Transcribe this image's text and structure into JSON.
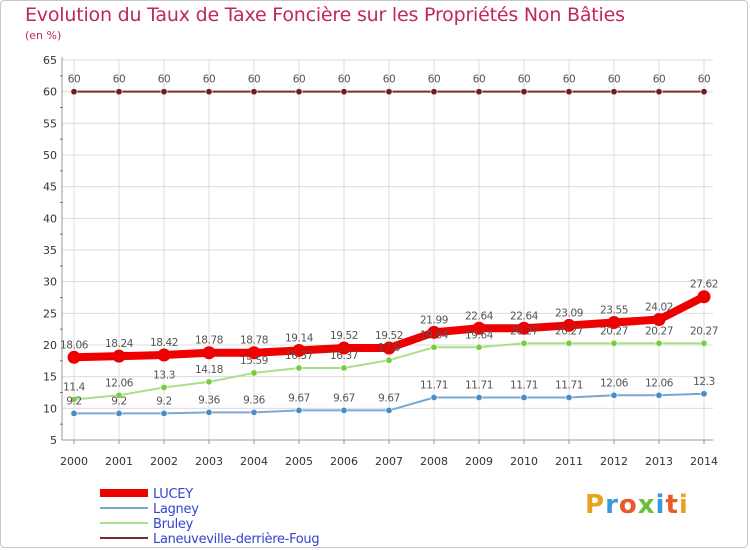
{
  "title": "Evolution du Taux de Taxe Foncière sur les Propriétés Non Bâties",
  "subtitle": "(en %)",
  "logo": {
    "text": "Proxiti",
    "colors": [
      "#e8a21f",
      "#3a9ad9",
      "#e85a2a",
      "#6bbf3a",
      "#3a9ad9",
      "#e85a2a",
      "#e8a21f"
    ]
  },
  "chart_data": {
    "type": "line",
    "x": [
      2000,
      2001,
      2002,
      2003,
      2004,
      2005,
      2006,
      2007,
      2008,
      2009,
      2010,
      2011,
      2012,
      2013,
      2014
    ],
    "ylim": [
      5,
      65
    ],
    "yticks": [
      5,
      10,
      15,
      20,
      25,
      30,
      35,
      40,
      45,
      50,
      55,
      60,
      65
    ],
    "grid": true,
    "legend": "bottom-left",
    "series": [
      {
        "name": "Laneuveville-derrière-Foug",
        "color": "#7a2a2a",
        "marker": "#6b1f1f",
        "width": 2,
        "values": [
          60,
          60,
          60,
          60,
          60,
          60,
          60,
          60,
          60,
          60,
          60,
          60,
          60,
          60,
          60
        ],
        "labels": [
          "60",
          "60",
          "60",
          "60",
          "60",
          "60",
          "60",
          "60",
          "60",
          "60",
          "60",
          "60",
          "60",
          "60",
          "60"
        ]
      },
      {
        "name": "Bruley",
        "color": "#a8e08a",
        "marker": "#7acc3e",
        "width": 2,
        "values": [
          11.4,
          12.06,
          13.3,
          14.18,
          15.59,
          16.37,
          16.37,
          17.6,
          19.64,
          19.64,
          20.27,
          20.27,
          20.27,
          20.27,
          20.27
        ],
        "labels": [
          "11.4",
          "12.06",
          "13.3",
          "14.18",
          "15.59",
          "16.37",
          "16.37",
          "17.6",
          "19.64",
          "19.64",
          "20.27",
          "20.27",
          "20.27",
          "20.27",
          "20.27"
        ]
      },
      {
        "name": "Lagney",
        "color": "#7aa8d0",
        "marker": "#4a8cc8",
        "width": 2,
        "values": [
          9.2,
          9.2,
          9.2,
          9.36,
          9.36,
          9.67,
          9.67,
          9.67,
          11.71,
          11.71,
          11.71,
          11.71,
          12.06,
          12.06,
          12.3
        ],
        "labels": [
          "9.2",
          "9.2",
          "9.2",
          "9.36",
          "9.36",
          "9.67",
          "9.67",
          "9.67",
          "11.71",
          "11.71",
          "11.71",
          "11.71",
          "12.06",
          "12.06",
          "12.3"
        ]
      },
      {
        "name": "LUCEY",
        "color": "#ee0000",
        "marker": "#ee0000",
        "width": 8,
        "values": [
          18.06,
          18.24,
          18.42,
          18.78,
          18.78,
          19.14,
          19.52,
          19.52,
          21.99,
          22.64,
          22.64,
          23.09,
          23.55,
          24.02,
          27.62
        ],
        "labels": [
          "18.06",
          "18.24",
          "18.42",
          "18.78",
          "18.78",
          "19.14",
          "19.52",
          "19.52",
          "21.99",
          "22.64",
          "22.64",
          "23.09",
          "23.55",
          "24.02",
          "27.62"
        ]
      }
    ]
  }
}
